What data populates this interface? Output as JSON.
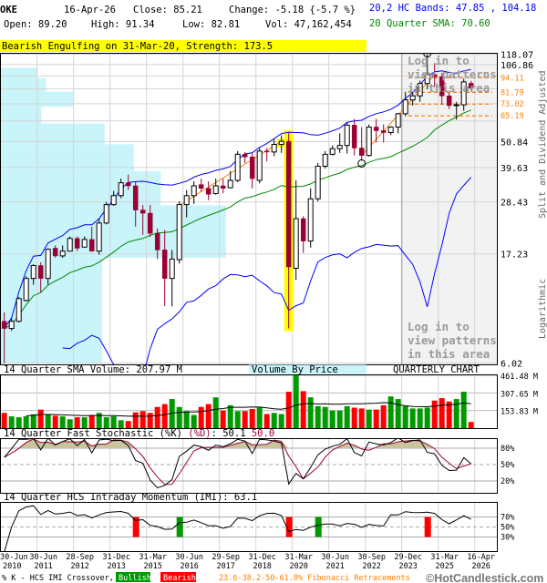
{
  "header": {
    "symbol": "OKE",
    "date": "16-Apr-26",
    "close": "Close: 85.21",
    "change": "Change: -5.18 {-5.7 %}",
    "open": "Open: 89.20",
    "high": "High: 91.34",
    "low": "Low: 82.81",
    "volume": "Vol: 47,162,454",
    "bands": "20,2 HC Bands: 47.85 , 104.18",
    "sma": "20 Quarter SMA: 70.60"
  },
  "pattern_banner": "Bearish Engulfing on 31-Mar-20, Strength: 173.5",
  "login_overlay": [
    "Log in to",
    "view patterns",
    "in this area"
  ],
  "panels": {
    "volume_label": "14 Quarter SMA Volume: 207.97 M",
    "vbp_label": "Volume By Price",
    "chart_kind": "QUARTERLY CHART",
    "stoch_label": "14 Quarter Fast Stochastic (%K)",
    "stoch_d_label": "(%D)",
    "stoch_k_value": ": 50.1",
    "stoch_d_value": "50.0",
    "imi_label": "14 Quarter HCS Intraday Momentum (IMI): 63.1"
  },
  "side_labels": {
    "adjusted": "Split and Dividend Adjusted",
    "scale": "Logarithmic"
  },
  "footer": {
    "crossover": "% K - HCS IMI Crossover,",
    "bullish": "Bullish",
    "bearish": "Bearish",
    "fibonacci": "23.6-38.2-50-61.8% Fibonacci Retracements",
    "copyright": "©HotCandlestick.com"
  },
  "colors": {
    "bull_candle": "#ffffff",
    "bear_candle": "#990033",
    "bands": "#0000ff",
    "sma": "#008800",
    "vol_up": "#009900",
    "vol_down": "#ff0000",
    "fib": "#ff7f00",
    "vbp": "#c8f4fa",
    "highlight": "#ffff00",
    "stoch_fill": "#c9c49c",
    "stoch_d": "#990033"
  },
  "chart_data": [
    {
      "type": "candlestick",
      "scale": "log",
      "ylim": [
        6.02,
        118.07
      ],
      "y_tick_labels": [
        "118.07",
        "106.86",
        "50.84",
        "39.63",
        "28.43",
        "17.23",
        "6.02"
      ],
      "y_grid": [
        118.07,
        106.86,
        95.65,
        84.45,
        73.24,
        62.04,
        50.84,
        39.63,
        28.43,
        17.23,
        6.02
      ],
      "x_ticks": [
        {
          "i": 0,
          "d": "30-Jun",
          "y": "2010"
        },
        {
          "i": 4,
          "d": "30-Jun",
          "y": "2011"
        },
        {
          "i": 9,
          "d": "28-Sep",
          "y": "2012"
        },
        {
          "i": 14,
          "d": "31-Dec",
          "y": "2013"
        },
        {
          "i": 19,
          "d": "31-Mar",
          "y": "2015"
        },
        {
          "i": 24,
          "d": "30-Jun",
          "y": "2016"
        },
        {
          "i": 29,
          "d": "29-Sep",
          "y": "2017"
        },
        {
          "i": 34,
          "d": "31-Dec",
          "y": "2018"
        },
        {
          "i": 39,
          "d": "31-Mar",
          "y": "2020"
        },
        {
          "i": 44,
          "d": "30-Jun",
          "y": "2021"
        },
        {
          "i": 49,
          "d": "30-Sep",
          "y": "2022"
        },
        {
          "i": 54,
          "d": "29-Dec",
          "y": "2023"
        },
        {
          "i": 59,
          "d": "31-Mar",
          "y": "2025"
        },
        {
          "i": 64,
          "d": "16-Apr",
          "y": "2026"
        }
      ],
      "ohlc": [
        [
          9.0,
          9.8,
          6.0,
          8.4
        ],
        [
          8.4,
          9.3,
          8.2,
          9.0
        ],
        [
          9.0,
          11.4,
          8.9,
          11.2
        ],
        [
          11.0,
          13.9,
          10.9,
          13.6
        ],
        [
          13.6,
          15.6,
          12.8,
          15.4
        ],
        [
          15.4,
          15.9,
          11.9,
          13.6
        ],
        [
          13.6,
          18.2,
          12.8,
          18.0
        ],
        [
          18.2,
          18.7,
          16.6,
          16.9
        ],
        [
          16.9,
          18.7,
          16.6,
          17.7
        ],
        [
          17.7,
          20.4,
          17.9,
          20.0
        ],
        [
          20.0,
          20.4,
          17.7,
          18.2
        ],
        [
          18.4,
          20.4,
          18.3,
          19.8
        ],
        [
          19.8,
          22.4,
          17.6,
          17.7
        ],
        [
          17.7,
          24.1,
          17.1,
          23.2
        ],
        [
          23.2,
          28.4,
          22.9,
          27.7
        ],
        [
          27.7,
          31.6,
          27.4,
          30.2
        ],
        [
          30.2,
          35.6,
          29.5,
          34.2
        ],
        [
          34.2,
          37.0,
          31.9,
          33.2
        ],
        [
          33.2,
          34.7,
          22.4,
          26.3
        ],
        [
          26.3,
          27.6,
          20.7,
          25.5
        ],
        [
          25.5,
          27.6,
          20.3,
          21.0
        ],
        [
          21.0,
          22.0,
          16.4,
          17.9
        ],
        [
          17.9,
          21.7,
          10.4,
          13.6
        ],
        [
          13.6,
          17.9,
          10.4,
          16.4
        ],
        [
          16.3,
          28.6,
          15.7,
          27.7
        ],
        [
          27.7,
          31.9,
          24.5,
          30.2
        ],
        [
          30.2,
          34.7,
          27.9,
          33.2
        ],
        [
          33.6,
          35.6,
          31.4,
          32.4
        ],
        [
          32.4,
          34.7,
          28.9,
          30.6
        ],
        [
          30.8,
          35.6,
          30.5,
          33.2
        ],
        [
          33.2,
          35.6,
          30.9,
          32.4
        ],
        [
          32.6,
          38.3,
          32.4,
          35.0
        ],
        [
          35.0,
          46.4,
          34.4,
          45.0
        ],
        [
          45.0,
          46.0,
          41.4,
          43.9
        ],
        [
          43.9,
          45.6,
          32.4,
          35.6
        ],
        [
          35.0,
          47.8,
          34.0,
          46.4
        ],
        [
          46.4,
          47.8,
          42.0,
          46.0
        ],
        [
          46.0,
          52.0,
          44.2,
          49.5
        ],
        [
          49.5,
          54.1,
          45.6,
          51.0
        ],
        [
          51.0,
          55.1,
          8.4,
          15.2
        ],
        [
          15.0,
          35.0,
          13.4,
          24.2
        ],
        [
          24.2,
          24.8,
          17.4,
          19.5
        ],
        [
          19.5,
          32.4,
          18.3,
          29.3
        ],
        [
          29.3,
          41.4,
          28.6,
          40.1
        ],
        [
          40.1,
          46.4,
          39.3,
          45.0
        ],
        [
          45.0,
          49.0,
          44.5,
          47.5
        ],
        [
          47.5,
          55.1,
          45.6,
          49.0
        ],
        [
          49.0,
          61.0,
          45.3,
          59.6
        ],
        [
          59.6,
          63.3,
          44.5,
          47.8
        ],
        [
          47.8,
          58.5,
          42.3,
          44.5
        ],
        [
          44.5,
          60.0,
          44.0,
          58.5
        ],
        [
          58.5,
          63.3,
          50.4,
          56.5
        ],
        [
          56.5,
          60.0,
          50.4,
          55.5
        ],
        [
          55.5,
          59.0,
          54.1,
          58.5
        ],
        [
          58.5,
          67.1,
          55.1,
          66.5
        ],
        [
          66.5,
          82.2,
          64.9,
          76.0
        ],
        [
          76.0,
          81.5,
          72.0,
          79.0
        ],
        [
          79.0,
          91.5,
          74.6,
          89.0
        ],
        [
          89.0,
          118.0,
          84.3,
          97.0
        ],
        [
          97.0,
          108.3,
          86.0,
          95.0
        ],
        [
          95.0,
          98.3,
          72.6,
          79.0
        ],
        [
          79.0,
          81.5,
          69.6,
          72.0
        ],
        [
          72.0,
          74.6,
          62.8,
          72.5
        ],
        [
          72.5,
          93.3,
          68.4,
          90.4
        ],
        [
          89.2,
          91.34,
          82.81,
          85.21
        ]
      ],
      "fibonacci_levels": [
        {
          "price": 94.11,
          "label": "94.11"
        },
        {
          "price": 81.79,
          "label": "81.79"
        },
        {
          "price": 73.02,
          "label": "73.02"
        },
        {
          "price": 65.19,
          "label": "65.19"
        }
      ],
      "trendlines": [
        {
          "from": [
            24,
            27.5
          ],
          "to": [
            38,
            51.0
          ]
        },
        {
          "from": [
            49,
            44.5
          ],
          "to": [
            59,
            97.0
          ]
        }
      ],
      "circle_markers": [
        {
          "i": 49,
          "at": "low"
        },
        {
          "i": 58,
          "at": "high"
        }
      ],
      "pattern_highlight": [
        38,
        39
      ],
      "locked_from_index": 54.5,
      "volume_by_price": [
        {
          "lo": 93.7,
          "hi": 103.5,
          "rel": 0.16
        },
        {
          "lo": 82.2,
          "hi": 93.7,
          "rel": 0.2
        },
        {
          "lo": 71.1,
          "hi": 82.2,
          "rel": 0.32
        },
        {
          "lo": 60.6,
          "hi": 71.1,
          "rel": 0.18
        },
        {
          "lo": 49.6,
          "hi": 60.6,
          "rel": 0.46
        },
        {
          "lo": 38.3,
          "hi": 49.6,
          "rel": 0.59
        },
        {
          "lo": 27.5,
          "hi": 38.3,
          "rel": 0.71
        },
        {
          "lo": 16.6,
          "hi": 27.5,
          "rel": 1.0
        },
        {
          "lo": 6.02,
          "hi": 16.6,
          "rel": 0.45
        }
      ]
    },
    {
      "type": "bar",
      "name": "volume",
      "unit": "M",
      "ylim": [
        0,
        461.48
      ],
      "y_tick_labels": [
        "461.48 M",
        "307.65 M",
        "153.83 M"
      ],
      "values": [
        133,
        103,
        95,
        103,
        121,
        162,
        121,
        108,
        103,
        77,
        95,
        95,
        115,
        133,
        95,
        103,
        69,
        62,
        138,
        149,
        133,
        185,
        210,
        254,
        185,
        149,
        115,
        185,
        210,
        269,
        154,
        200,
        149,
        149,
        167,
        179,
        123,
        133,
        123,
        318,
        462,
        323,
        269,
        192,
        185,
        154,
        154,
        192,
        179,
        172,
        162,
        162,
        200,
        277,
        254,
        192,
        172,
        172,
        179,
        241,
        262,
        233,
        254,
        318,
        54
      ],
      "colors": [
        "r",
        "g",
        "g",
        "g",
        "g",
        "r",
        "g",
        "r",
        "g",
        "g",
        "r",
        "g",
        "r",
        "g",
        "g",
        "g",
        "g",
        "r",
        "r",
        "r",
        "r",
        "r",
        "r",
        "g",
        "g",
        "g",
        "g",
        "r",
        "r",
        "g",
        "r",
        "g",
        "g",
        "r",
        "r",
        "g",
        "r",
        "g",
        "g",
        "r",
        "g",
        "r",
        "g",
        "g",
        "g",
        "g",
        "g",
        "g",
        "r",
        "r",
        "g",
        "r",
        "r",
        "g",
        "g",
        "g",
        "g",
        "g",
        "g",
        "r",
        "r",
        "r",
        "g",
        "g",
        "r"
      ]
    },
    {
      "type": "line",
      "name": "stochastic",
      "ylim": [
        0,
        100
      ],
      "y_tick_labels": [
        "80%",
        "50%",
        "20%"
      ]
    },
    {
      "type": "line",
      "name": "imi",
      "ylim": [
        0,
        100
      ],
      "y_tick_labels": [
        "70%",
        "50%",
        "30%"
      ],
      "signals": [
        {
          "i": 18,
          "kind": "bearish"
        },
        {
          "i": 24,
          "kind": "bullish"
        },
        {
          "i": 39,
          "kind": "bearish"
        },
        {
          "i": 43,
          "kind": "bullish"
        },
        {
          "i": 58,
          "kind": "bearish"
        }
      ]
    }
  ]
}
